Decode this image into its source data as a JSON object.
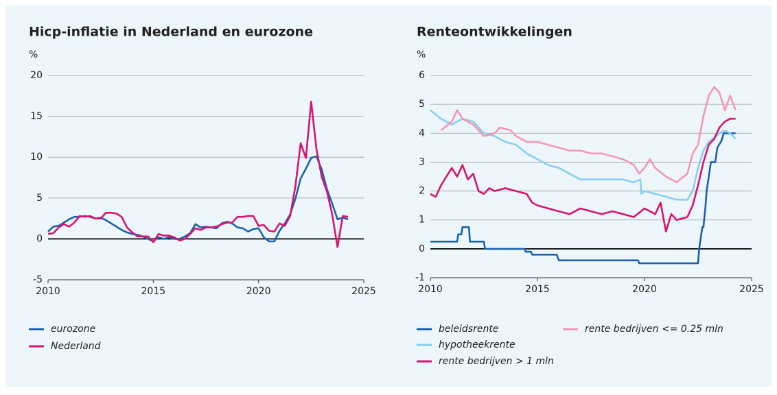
{
  "chart_data": [
    {
      "type": "line",
      "title": "Hicp-inflatie in Nederland en eurozone",
      "y_label": "%",
      "xlim": [
        2010,
        2025
      ],
      "xticks": [
        2010,
        2015,
        2020,
        2025
      ],
      "ylim": [
        -5,
        20
      ],
      "yticks": [
        -5,
        0,
        5,
        10,
        15,
        20
      ],
      "grid": true,
      "series": [
        {
          "name": "eurozone",
          "color": "#1a62ad",
          "x": [
            2010,
            2010.25,
            2010.5,
            2010.75,
            2011,
            2011.25,
            2011.5,
            2011.75,
            2012,
            2012.25,
            2012.5,
            2012.75,
            2013,
            2013.25,
            2013.5,
            2013.75,
            2014,
            2014.25,
            2014.5,
            2014.75,
            2015,
            2015.25,
            2015.5,
            2015.75,
            2016,
            2016.25,
            2016.5,
            2016.75,
            2017,
            2017.25,
            2017.5,
            2017.75,
            2018,
            2018.25,
            2018.5,
            2018.75,
            2019,
            2019.25,
            2019.5,
            2019.75,
            2020,
            2020.25,
            2020.5,
            2020.75,
            2021,
            2021.25,
            2021.5,
            2021.75,
            2022,
            2022.25,
            2022.5,
            2022.75,
            2023,
            2023.25,
            2023.5,
            2023.75,
            2024,
            2024.25
          ],
          "values": [
            0.9,
            1.5,
            1.6,
            2.0,
            2.4,
            2.7,
            2.7,
            2.8,
            2.7,
            2.5,
            2.6,
            2.3,
            1.9,
            1.5,
            1.1,
            0.8,
            0.6,
            0.5,
            0.3,
            0.0,
            -0.3,
            0.2,
            0.0,
            0.2,
            0.0,
            0.0,
            0.3,
            0.7,
            1.8,
            1.4,
            1.5,
            1.4,
            1.3,
            1.9,
            2.1,
            1.9,
            1.4,
            1.3,
            0.9,
            1.2,
            1.3,
            0.2,
            -0.3,
            -0.3,
            1.0,
            1.9,
            3.0,
            4.9,
            7.4,
            8.6,
            9.9,
            10.1,
            8.5,
            6.1,
            4.3,
            2.4,
            2.6,
            2.4
          ]
        },
        {
          "name": "Nederland",
          "color": "#d9136e",
          "x": [
            2010,
            2010.25,
            2010.5,
            2010.75,
            2011,
            2011.25,
            2011.5,
            2011.75,
            2012,
            2012.25,
            2012.5,
            2012.75,
            2013,
            2013.25,
            2013.5,
            2013.75,
            2014,
            2014.25,
            2014.5,
            2014.75,
            2015,
            2015.25,
            2015.5,
            2015.75,
            2016,
            2016.25,
            2016.5,
            2016.75,
            2017,
            2017.25,
            2017.5,
            2017.75,
            2018,
            2018.25,
            2018.5,
            2018.75,
            2019,
            2019.25,
            2019.5,
            2019.75,
            2020,
            2020.25,
            2020.5,
            2020.75,
            2021,
            2021.25,
            2021.5,
            2021.75,
            2022,
            2022.25,
            2022.5,
            2022.75,
            2023,
            2023.25,
            2023.5,
            2023.75,
            2024,
            2024.25
          ],
          "values": [
            0.6,
            0.7,
            1.4,
            1.8,
            1.5,
            2.0,
            2.8,
            2.7,
            2.8,
            2.5,
            2.5,
            3.2,
            3.2,
            3.1,
            2.7,
            1.4,
            0.8,
            0.3,
            0.3,
            0.3,
            -0.4,
            0.6,
            0.4,
            0.4,
            0.2,
            -0.2,
            0.0,
            0.6,
            1.3,
            1.1,
            1.4,
            1.4,
            1.5,
            1.8,
            2.0,
            2.0,
            2.7,
            2.7,
            2.8,
            2.8,
            1.6,
            1.7,
            1.0,
            0.9,
            1.9,
            1.6,
            2.8,
            6.4,
            11.7,
            9.9,
            16.8,
            11.0,
            7.6,
            5.8,
            3.0,
            -1.0,
            2.8,
            2.7
          ]
        }
      ]
    },
    {
      "type": "line",
      "title": "Renteontwikkelingen",
      "y_label": "%",
      "xlim": [
        2010,
        2025
      ],
      "xticks": [
        2010,
        2015,
        2020,
        2025
      ],
      "ylim": [
        -1,
        6
      ],
      "yticks": [
        -1,
        0,
        1,
        2,
        3,
        4,
        5,
        6
      ],
      "grid": true,
      "series": [
        {
          "name": "beleidsrente",
          "color": "#1a62ad",
          "x": [
            2010,
            2011.25,
            2011.3,
            2011.45,
            2011.5,
            2011.8,
            2011.85,
            2012.5,
            2012.55,
            2014.4,
            2014.45,
            2014.7,
            2014.75,
            2015.9,
            2016,
            2019.7,
            2019.75,
            2022.5,
            2022.55,
            2022.7,
            2022.75,
            2022.85,
            2022.9,
            2023,
            2023.1,
            2023.3,
            2023.4,
            2023.6,
            2023.7,
            2024.25
          ],
          "values": [
            0.25,
            0.25,
            0.5,
            0.5,
            0.75,
            0.75,
            0.25,
            0.25,
            0,
            0,
            -0.1,
            -0.1,
            -0.2,
            -0.2,
            -0.4,
            -0.4,
            -0.5,
            -0.5,
            0,
            0.75,
            0.75,
            1.5,
            2.0,
            2.5,
            3.0,
            3.0,
            3.5,
            3.75,
            4.0,
            4.0
          ]
        },
        {
          "name": "hypotheekrente",
          "color": "#87cff1",
          "x": [
            2010,
            2010.5,
            2011,
            2011.5,
            2012,
            2012.5,
            2013,
            2013.5,
            2014,
            2014.5,
            2015,
            2015.5,
            2016,
            2016.5,
            2017,
            2017.5,
            2018,
            2018.5,
            2019,
            2019.5,
            2019.8,
            2019.85,
            2020,
            2020.5,
            2021,
            2021.5,
            2022,
            2022.25,
            2022.5,
            2022.75,
            2023,
            2023.5,
            2023.75,
            2024,
            2024.25
          ],
          "values": [
            4.8,
            4.5,
            4.3,
            4.5,
            4.4,
            4.0,
            3.9,
            3.7,
            3.6,
            3.3,
            3.1,
            2.9,
            2.8,
            2.6,
            2.4,
            2.4,
            2.4,
            2.4,
            2.4,
            2.3,
            2.4,
            1.9,
            2.0,
            1.9,
            1.8,
            1.7,
            1.7,
            2.0,
            2.8,
            3.4,
            3.7,
            4.0,
            4.1,
            4.0,
            3.8
          ]
        },
        {
          "name": "rente bedrijven > 1 mln",
          "color": "#d9136e",
          "x": [
            2010,
            2010.25,
            2010.5,
            2010.75,
            2011,
            2011.25,
            2011.5,
            2011.75,
            2012,
            2012.25,
            2012.5,
            2012.75,
            2013,
            2013.5,
            2014,
            2014.5,
            2014.75,
            2015,
            2015.5,
            2016,
            2016.5,
            2017,
            2017.5,
            2018,
            2018.5,
            2019,
            2019.5,
            2020,
            2020.5,
            2020.75,
            2021,
            2021.25,
            2021.5,
            2022,
            2022.25,
            2022.5,
            2022.75,
            2023,
            2023.25,
            2023.5,
            2023.75,
            2024,
            2024.25
          ],
          "values": [
            1.9,
            1.8,
            2.2,
            2.5,
            2.8,
            2.5,
            2.9,
            2.4,
            2.6,
            2.0,
            1.9,
            2.1,
            2.0,
            2.1,
            2.0,
            1.9,
            1.6,
            1.5,
            1.4,
            1.3,
            1.2,
            1.4,
            1.3,
            1.2,
            1.3,
            1.2,
            1.1,
            1.4,
            1.2,
            1.6,
            0.6,
            1.2,
            1.0,
            1.1,
            1.5,
            2.2,
            3.0,
            3.6,
            3.8,
            4.2,
            4.4,
            4.5,
            4.5
          ]
        },
        {
          "name": "rente bedrijven <= 0.25 mln",
          "color": "#f497b5",
          "x": [
            2010.5,
            2011,
            2011.25,
            2011.5,
            2012,
            2012.5,
            2013,
            2013.25,
            2013.75,
            2014,
            2014.5,
            2015,
            2015.5,
            2016,
            2016.5,
            2017,
            2017.5,
            2018,
            2018.5,
            2019,
            2019.5,
            2019.75,
            2020,
            2020.25,
            2020.5,
            2021,
            2021.5,
            2022,
            2022.25,
            2022.5,
            2022.75,
            2023,
            2023.25,
            2023.5,
            2023.75,
            2024,
            2024.25
          ],
          "values": [
            4.1,
            4.4,
            4.8,
            4.5,
            4.3,
            3.9,
            4.0,
            4.2,
            4.1,
            3.9,
            3.7,
            3.7,
            3.6,
            3.5,
            3.4,
            3.4,
            3.3,
            3.3,
            3.2,
            3.1,
            2.9,
            2.6,
            2.8,
            3.1,
            2.8,
            2.5,
            2.3,
            2.6,
            3.3,
            3.6,
            4.6,
            5.3,
            5.6,
            5.4,
            4.8,
            5.3,
            4.8
          ]
        }
      ]
    }
  ]
}
